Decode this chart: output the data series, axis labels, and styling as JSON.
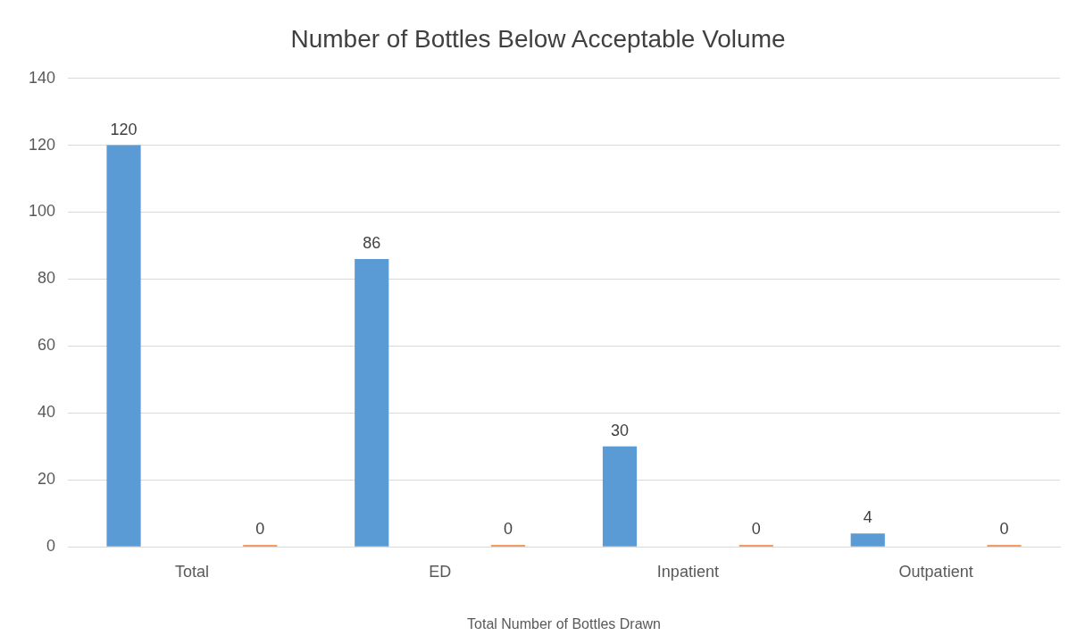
{
  "chart_data": {
    "type": "bar",
    "title": "Number of Bottles Below Acceptable Volume",
    "xlabel": "Total Number of Bottles Drawn",
    "categories": [
      "Total",
      "ED",
      "Inpatient",
      "Outpatient"
    ],
    "series": [
      {
        "color": "#5b9bd5",
        "values": [
          120,
          86,
          30,
          4
        ]
      },
      {
        "color": "#ed7d31",
        "values": [
          0,
          0,
          0,
          0
        ]
      }
    ],
    "ylim": [
      0,
      140
    ],
    "yticks": [
      0,
      20,
      40,
      60,
      80,
      100,
      120,
      140
    ],
    "grid": "y",
    "data_labels": true,
    "legend": false
  }
}
